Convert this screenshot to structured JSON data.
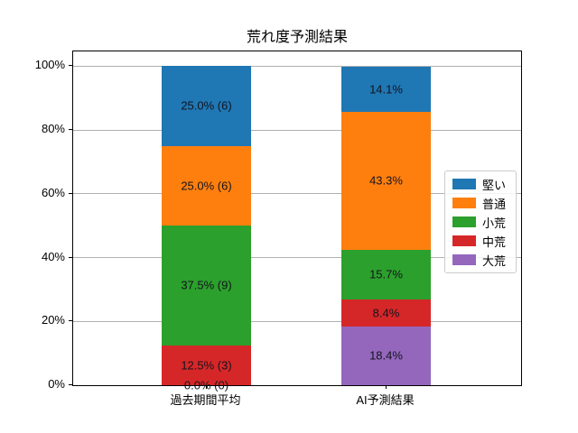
{
  "title": "荒れ度予測結果",
  "chart_data": {
    "type": "bar",
    "variant": "stacked-percent",
    "title": "荒れ度予測結果",
    "xlabel": "",
    "ylabel": "",
    "categories": [
      "過去期間平均",
      "AI予測結果"
    ],
    "series_bottom_to_top": [
      {
        "name": "大荒",
        "color": "#9467bd",
        "values": [
          0.0,
          18.4
        ],
        "labels": [
          "0.0% (0)",
          "18.4%"
        ]
      },
      {
        "name": "中荒",
        "color": "#d62728",
        "values": [
          12.5,
          8.4
        ],
        "labels": [
          "12.5% (3)",
          "8.4%"
        ]
      },
      {
        "name": "小荒",
        "color": "#2ca02c",
        "values": [
          37.5,
          15.7
        ],
        "labels": [
          "37.5% (9)",
          "15.7%"
        ]
      },
      {
        "name": "普通",
        "color": "#ff7f0e",
        "values": [
          25.0,
          43.3
        ],
        "labels": [
          "25.0% (6)",
          "43.3%"
        ]
      },
      {
        "name": "堅い",
        "color": "#1f77b4",
        "values": [
          25.0,
          14.1
        ],
        "labels": [
          "25.0% (6)",
          "14.1%"
        ]
      }
    ],
    "legend": {
      "position": "center right",
      "entries": [
        "堅い",
        "普通",
        "小荒",
        "中荒",
        "大荒"
      ]
    },
    "yticks": [
      {
        "value": 0,
        "label": "0%"
      },
      {
        "value": 20,
        "label": "20%"
      },
      {
        "value": 40,
        "label": "40%"
      },
      {
        "value": 60,
        "label": "60%"
      },
      {
        "value": 80,
        "label": "80%"
      },
      {
        "value": 100,
        "label": "100%"
      }
    ],
    "ylim": [
      0,
      104.6
    ],
    "grid": true
  }
}
